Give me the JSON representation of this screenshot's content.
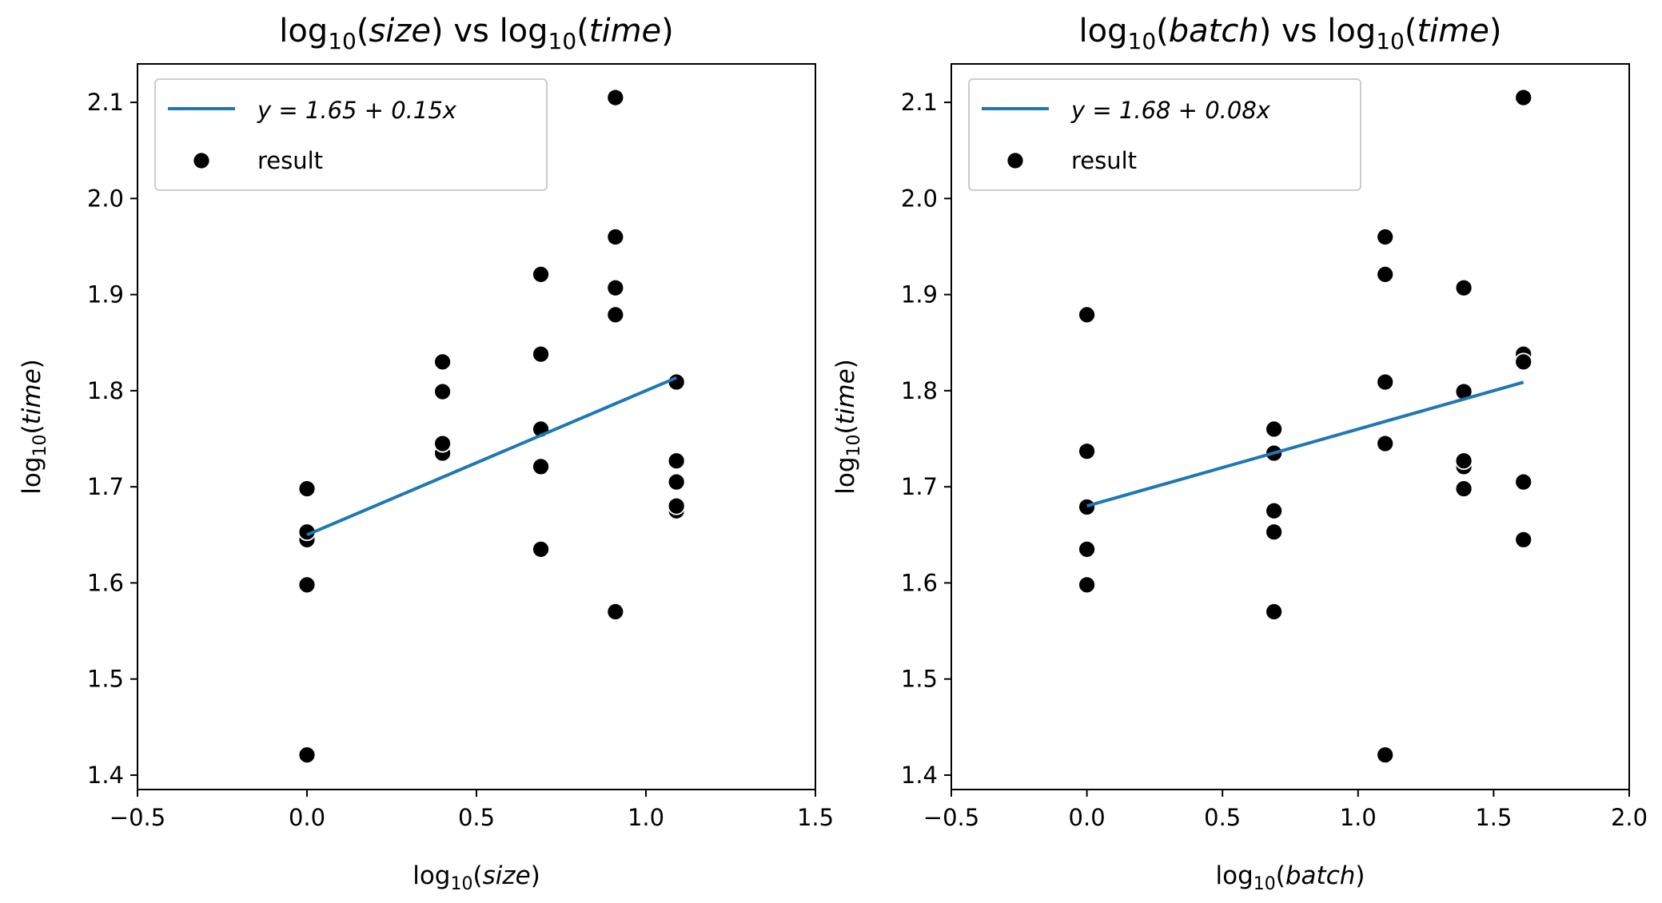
{
  "colors": {
    "fit_line": "#1f77b4",
    "points": "#000000",
    "point_edge": "#ffffff"
  },
  "chart_data": [
    {
      "type": "scatter",
      "title": {
        "pre": "log",
        "sub": "10",
        "mid": "(",
        "var1": "size",
        "join": ") vs log",
        "sub2": "10",
        "mid2": "(",
        "var2": "time",
        "post": ")"
      },
      "xlabel": {
        "pre": "log",
        "sub": "10",
        "open": "(",
        "var": "size",
        "close": ")"
      },
      "ylabel": {
        "pre": "log",
        "sub": "10",
        "open": "(",
        "var": "time",
        "close": ")"
      },
      "xlim": [
        -0.5,
        1.5
      ],
      "ylim": [
        1.385,
        2.14
      ],
      "xticks": [
        -0.5,
        0.0,
        0.5,
        1.0,
        1.5
      ],
      "xtick_labels": [
        "−0.5",
        "0.0",
        "0.5",
        "1.0",
        "1.5"
      ],
      "yticks": [
        1.4,
        1.5,
        1.6,
        1.7,
        1.8,
        1.9,
        2.0,
        2.1
      ],
      "ytick_labels": [
        "1.4",
        "1.5",
        "1.6",
        "1.7",
        "1.8",
        "1.9",
        "2.0",
        "2.1"
      ],
      "legend": {
        "location": "upper left",
        "line_label": "y = 1.65 + 0.15x",
        "points_label": "result"
      },
      "fit": {
        "intercept": 1.65,
        "slope": 0.15,
        "x": [
          0.0,
          1.09
        ]
      },
      "points": {
        "x": [
          0,
          0,
          0,
          0,
          0,
          0,
          0.4,
          0.4,
          0.4,
          0.4,
          0.4,
          0.69,
          0.69,
          0.69,
          0.69,
          0.69,
          0.69,
          0.91,
          0.91,
          0.91,
          0.91,
          0.91,
          1.09,
          1.09,
          1.09,
          1.09,
          1.09,
          1.09
        ],
        "y": [
          1.698,
          1.653,
          1.645,
          1.598,
          1.421,
          1.653,
          1.83,
          1.799,
          1.735,
          1.745,
          1.745,
          1.921,
          1.838,
          1.76,
          1.721,
          1.635,
          1.76,
          2.105,
          1.96,
          1.907,
          1.879,
          1.57,
          1.809,
          1.727,
          1.705,
          1.68,
          1.675,
          1.68
        ]
      }
    },
    {
      "type": "scatter",
      "title": {
        "pre": "log",
        "sub": "10",
        "mid": "(",
        "var1": "batch",
        "join": ") vs log",
        "sub2": "10",
        "mid2": "(",
        "var2": "time",
        "post": ")"
      },
      "xlabel": {
        "pre": "log",
        "sub": "10",
        "open": "(",
        "var": "batch",
        "close": ")"
      },
      "ylabel": {
        "pre": "log",
        "sub": "10",
        "open": "(",
        "var": "time",
        "close": ")"
      },
      "xlim": [
        -0.5,
        2.0
      ],
      "ylim": [
        1.385,
        2.14
      ],
      "xticks": [
        -0.5,
        0.0,
        0.5,
        1.0,
        1.5,
        2.0
      ],
      "xtick_labels": [
        "−0.5",
        "0.0",
        "0.5",
        "1.0",
        "1.5",
        "2.0"
      ],
      "yticks": [
        1.4,
        1.5,
        1.6,
        1.7,
        1.8,
        1.9,
        2.0,
        2.1
      ],
      "ytick_labels": [
        "1.4",
        "1.5",
        "1.6",
        "1.7",
        "1.8",
        "1.9",
        "2.0",
        "2.1"
      ],
      "legend": {
        "location": "upper left",
        "line_label": "y = 1.68 + 0.08x",
        "points_label": "result"
      },
      "fit": {
        "intercept": 1.68,
        "slope": 0.08,
        "x": [
          0.0,
          1.61
        ]
      },
      "points": {
        "x": [
          0,
          0,
          0,
          0,
          0,
          0.69,
          0.69,
          0.69,
          0.69,
          0.69,
          1.1,
          1.1,
          1.1,
          1.1,
          1.1,
          1.39,
          1.39,
          1.39,
          1.39,
          1.39,
          1.39,
          1.61,
          1.61,
          1.61,
          1.61,
          1.61
        ],
        "y": [
          1.879,
          1.737,
          1.679,
          1.635,
          1.598,
          1.76,
          1.735,
          1.675,
          1.653,
          1.57,
          1.96,
          1.921,
          1.809,
          1.745,
          1.421,
          1.907,
          1.799,
          1.727,
          1.721,
          1.698,
          1.727,
          1.838,
          1.83,
          1.705,
          1.645,
          2.105
        ]
      }
    }
  ]
}
